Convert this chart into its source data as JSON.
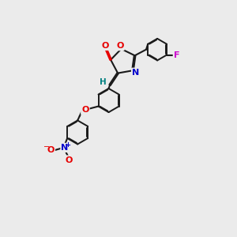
{
  "background_color": "#ebebeb",
  "bond_color": "#1a1a1a",
  "atom_colors": {
    "O": "#e60000",
    "N": "#0000cc",
    "F": "#cc00cc",
    "H": "#008080",
    "C": "#1a1a1a"
  },
  "figsize": [
    3.0,
    3.0
  ],
  "dpi": 100
}
